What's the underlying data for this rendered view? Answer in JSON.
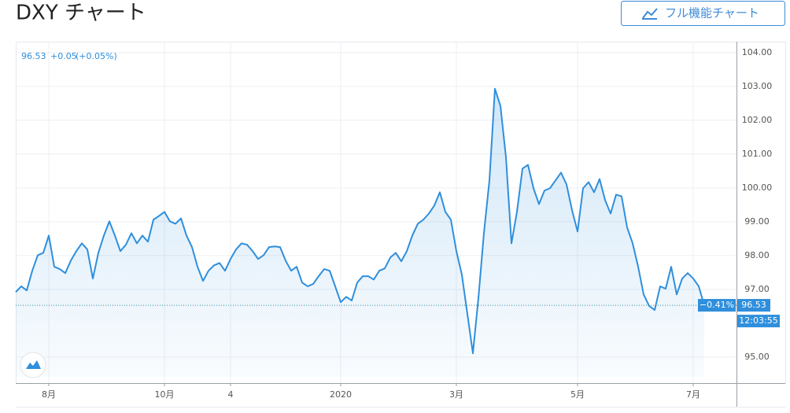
{
  "title": "DXY チャート",
  "button": "フル機能チャート",
  "chart_data": {
    "type": "line",
    "color": "#2f8fdc",
    "last": {
      "price": 96.53,
      "change": "+0.05",
      "change_pct": "(+0.05%)",
      "period_change": "−0.41%",
      "time": "12:03:55"
    },
    "categories": [
      null,
      null,
      null,
      null,
      null,
      null,
      "8月",
      null,
      null,
      null,
      null,
      null,
      null,
      null,
      null,
      null,
      null,
      null,
      null,
      null,
      null,
      null,
      null,
      null,
      null,
      null,
      null,
      "10月",
      null,
      null,
      null,
      null,
      null,
      null,
      null,
      null,
      null,
      null,
      null,
      "4",
      null,
      null,
      null,
      null,
      null,
      null,
      null,
      null,
      null,
      null,
      null,
      null,
      null,
      null,
      null,
      null,
      null,
      null,
      null,
      "2020",
      null,
      null,
      null,
      null,
      null,
      null,
      null,
      null,
      null,
      null,
      null,
      null,
      null,
      null,
      null,
      null,
      null,
      null,
      null,
      null,
      "3月",
      null,
      null,
      null,
      null,
      null,
      null,
      null,
      null,
      null,
      null,
      null,
      null,
      null,
      null,
      null,
      null,
      null,
      null,
      null,
      null,
      null,
      "5月",
      null,
      null,
      null,
      null,
      null,
      null,
      null,
      null,
      null,
      null,
      null,
      null,
      null,
      null,
      null,
      null,
      null,
      null,
      null,
      null,
      "7月",
      null,
      null
    ],
    "values": [
      96.92,
      97.09,
      96.97,
      97.55,
      98.01,
      98.08,
      98.59,
      97.67,
      97.6,
      97.48,
      97.85,
      98.13,
      98.36,
      98.18,
      97.32,
      98.08,
      98.59,
      99.01,
      98.59,
      98.13,
      98.32,
      98.66,
      98.36,
      98.59,
      98.41,
      99.06,
      99.17,
      99.29,
      99.01,
      98.94,
      99.1,
      98.59,
      98.25,
      97.67,
      97.25,
      97.55,
      97.71,
      97.78,
      97.55,
      97.9,
      98.18,
      98.36,
      98.32,
      98.13,
      97.9,
      98.01,
      98.25,
      98.27,
      98.25,
      97.85,
      97.55,
      97.67,
      97.2,
      97.09,
      97.16,
      97.39,
      97.6,
      97.55,
      97.09,
      96.62,
      96.78,
      96.67,
      97.2,
      97.39,
      97.39,
      97.29,
      97.55,
      97.62,
      97.94,
      98.08,
      97.83,
      98.13,
      98.59,
      98.94,
      99.06,
      99.24,
      99.48,
      99.87,
      99.29,
      99.06,
      98.13,
      97.43,
      96.27,
      95.11,
      96.74,
      98.66,
      100.22,
      102.93,
      102.42,
      100.91,
      98.36,
      99.29,
      100.57,
      100.68,
      99.99,
      99.52,
      99.92,
      99.99,
      100.22,
      100.45,
      100.1,
      99.34,
      98.71,
      99.99,
      100.17,
      99.87,
      100.26,
      99.64,
      99.24,
      99.8,
      99.75,
      98.83,
      98.36,
      97.67,
      96.85,
      96.51,
      96.39,
      97.09,
      97.02,
      97.67,
      96.85,
      97.32,
      97.48,
      97.32,
      97.09,
      96.53
    ],
    "ylim": [
      94.23,
      104.32
    ],
    "yticks": [
      {
        "value": 95,
        "label": "95.00"
      },
      {
        "value": 97,
        "label": "97.00"
      },
      {
        "value": 98,
        "label": "98.00"
      },
      {
        "value": 99,
        "label": "99.00"
      },
      {
        "value": 100,
        "label": "100.00"
      },
      {
        "value": 101,
        "label": "101.00"
      },
      {
        "value": 102,
        "label": "102.00"
      },
      {
        "value": 103,
        "label": "103.00"
      },
      {
        "value": 104,
        "label": "104.00"
      }
    ],
    "grid": true
  }
}
